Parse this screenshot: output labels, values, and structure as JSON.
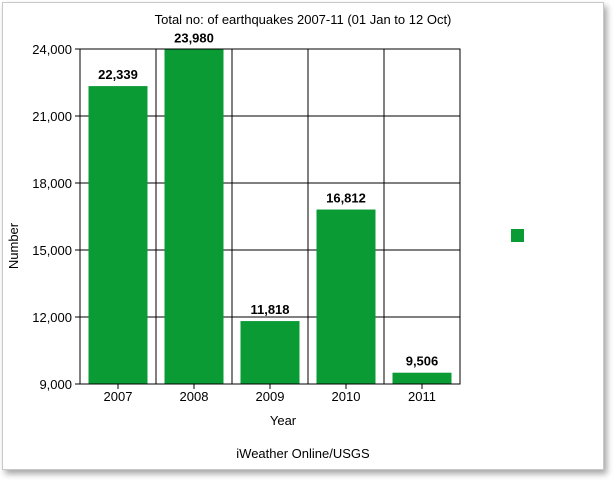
{
  "chart_data": {
    "type": "bar",
    "title": "Total no: of earthquakes 2007-11 (01 Jan to 12 Oct)",
    "xlabel": "Year",
    "ylabel": "Number",
    "categories": [
      "2007",
      "2008",
      "2009",
      "2010",
      "2011"
    ],
    "values": [
      22339,
      23980,
      11818,
      16812,
      9506
    ],
    "value_labels": [
      "22,339",
      "23,980",
      "11,818",
      "16,812",
      "9,506"
    ],
    "ylim": [
      9000,
      24000
    ],
    "yticks": [
      9000,
      12000,
      15000,
      18000,
      21000,
      24000
    ],
    "ytick_labels": [
      "9,000",
      "12,000",
      "15,000",
      "18,000",
      "21,000",
      "24,000"
    ],
    "grid": true,
    "legend": "right",
    "bar_color": "#0a9b35",
    "source": "iWeather Online/USGS"
  }
}
